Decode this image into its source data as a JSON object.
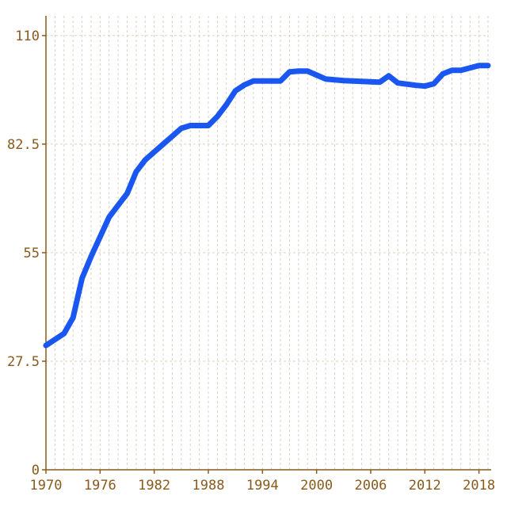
{
  "chart_data": {
    "type": "line",
    "title": "",
    "xlabel": "",
    "ylabel": "",
    "xlim": [
      1970,
      2019
    ],
    "ylim": [
      0,
      115
    ],
    "grid": true,
    "legend": "none",
    "x_ticks": [
      1970,
      1976,
      1982,
      1988,
      1994,
      2000,
      2006,
      2012,
      2018
    ],
    "x_tick_labels": [
      "1970",
      "1976",
      "1982",
      "1988",
      "1994",
      "2000",
      "2006",
      "2012",
      "2018"
    ],
    "y_ticks": [
      0,
      27.5,
      55,
      82.5,
      110
    ],
    "y_tick_labels": [
      "0",
      "27.5",
      "55",
      "82.5",
      "110"
    ],
    "x_grid_every": 1,
    "colors": {
      "series": "#1a56f0",
      "axis": "#8a5a1c",
      "grid": "#d9d2c0"
    },
    "series": [
      {
        "x": [
          1970,
          1971,
          1972,
          1973,
          1974,
          1975,
          1976,
          1977,
          1978,
          1979,
          1980,
          1981,
          1982,
          1983,
          1984,
          1985,
          1986,
          1987,
          1988,
          1989,
          1990,
          1991,
          1992,
          1993,
          1994,
          1995,
          1996,
          1997,
          1998,
          1999,
          2000,
          2001,
          2002,
          2003,
          2004,
          2005,
          2006,
          2007,
          2008,
          2009,
          2010,
          2011,
          2012,
          2013,
          2014,
          2015,
          2016,
          2017,
          2018,
          2019
        ],
        "values": [
          31.5,
          33,
          34.5,
          38.5,
          48.5,
          54,
          59,
          64,
          67,
          70,
          75.5,
          78.5,
          80.5,
          82.5,
          84.5,
          86.5,
          87.2,
          87.2,
          87.2,
          89.5,
          92.5,
          96,
          97.5,
          98.5,
          98.5,
          98.5,
          98.5,
          100.8,
          101,
          101,
          100,
          99,
          98.8,
          98.6,
          98.5,
          98.4,
          98.3,
          98.2,
          99.8,
          98,
          97.7,
          97.4,
          97.2,
          97.8,
          100.3,
          101.2,
          101.2,
          101.8,
          102.4,
          102.4
        ]
      }
    ]
  }
}
